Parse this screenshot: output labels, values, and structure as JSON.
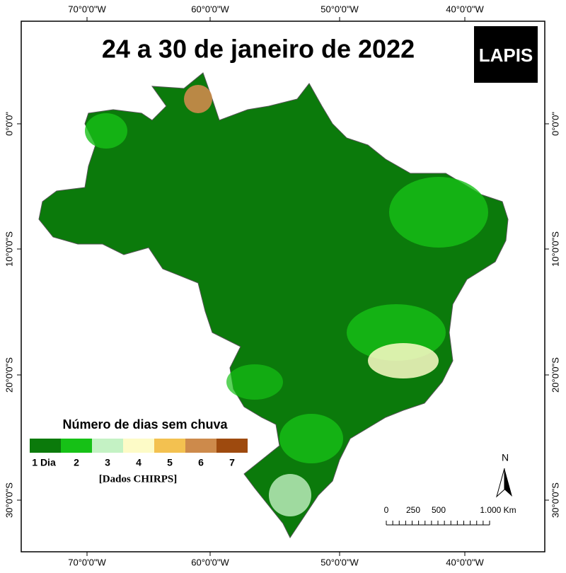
{
  "title": "24 a 30 de janeiro de 2022",
  "logo": "LAPIS",
  "longitude_labels": [
    "70°0'0\"W",
    "60°0'0\"W",
    "50°0'0\"W",
    "40°0'0\"W"
  ],
  "latitude_labels": [
    "0°0'0\"",
    "10°0'0\"S",
    "20°0'0\"S",
    "30°0'0\"S"
  ],
  "legend": {
    "title": "Número de dias sem chuva",
    "items": [
      {
        "label": "1 Dia",
        "color": "#0b7a0b"
      },
      {
        "label": "2",
        "color": "#16c116"
      },
      {
        "label": "3",
        "color": "#c4f2c4"
      },
      {
        "label": "4",
        "color": "#fdfbc7"
      },
      {
        "label": "5",
        "color": "#f3c150"
      },
      {
        "label": "6",
        "color": "#cd8a4b"
      },
      {
        "label": "7",
        "color": "#9e4a0e"
      }
    ],
    "source": "[Dados CHIRPS]"
  },
  "scale_bar": [
    "0",
    "250",
    "500",
    "1.000 Km"
  ],
  "north_arrow": "N"
}
